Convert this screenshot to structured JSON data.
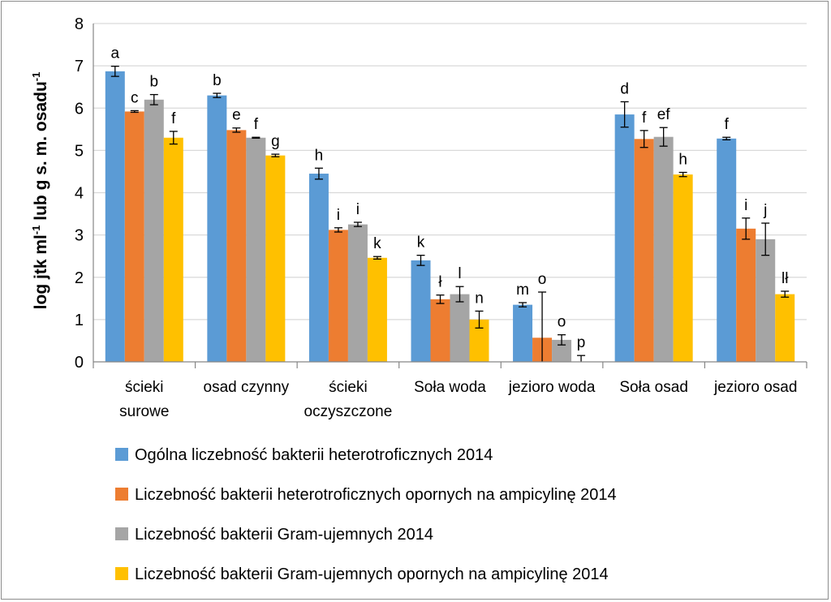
{
  "chart_data": {
    "type": "bar",
    "ylabel": "log jtk ml-1 lub g s. m. osadu-1",
    "ylabel_parts": [
      "log jtk ml",
      "-1",
      " lub g s. m. osadu",
      "-1"
    ],
    "ylim": [
      0,
      8
    ],
    "yticks": [
      0,
      1,
      2,
      3,
      4,
      5,
      6,
      7,
      8
    ],
    "grid": true,
    "legend_position": "bottom",
    "categories": [
      "ścieki surowe",
      "osad czynny",
      "ścieki oczyszczone",
      "Soła woda",
      "jezioro woda",
      "Soła osad",
      "jezioro osad"
    ],
    "category_lines": [
      [
        "ścieki",
        "surowe"
      ],
      [
        "osad czynny"
      ],
      [
        "ścieki",
        "oczyszczone"
      ],
      [
        "Soła woda"
      ],
      [
        "jezioro woda"
      ],
      [
        "Soła osad"
      ],
      [
        "jezioro osad"
      ]
    ],
    "series": [
      {
        "name": "Ogólna liczebność bakterii heterotroficznych 2014",
        "color": "#5B9BD5",
        "values": [
          6.87,
          6.3,
          4.45,
          2.4,
          1.35,
          5.85,
          5.28
        ],
        "errors": [
          0.12,
          0.05,
          0.13,
          0.12,
          0.05,
          0.3,
          0.03
        ],
        "labels": [
          "a",
          "b",
          "h",
          "k",
          "m",
          "d",
          "f"
        ]
      },
      {
        "name": "Liczebność bakterii heterotroficznych opornych na ampicylinę 2014",
        "color": "#ED7D31",
        "values": [
          5.92,
          5.48,
          3.12,
          1.48,
          0.57,
          5.27,
          3.15
        ],
        "errors": [
          0.02,
          0.05,
          0.05,
          0.1,
          1.08,
          0.2,
          0.25
        ],
        "labels": [
          "c",
          "e",
          "i",
          "ł",
          "o",
          "f",
          "i"
        ]
      },
      {
        "name": "Liczebność bakterii Gram-ujemnych 2014",
        "color": "#A5A5A5",
        "values": [
          6.2,
          5.3,
          3.25,
          1.6,
          0.52,
          5.32,
          2.9
        ],
        "errors": [
          0.12,
          0.01,
          0.05,
          0.18,
          0.12,
          0.22,
          0.38
        ],
        "labels": [
          "b",
          "f",
          "i",
          "l",
          "o",
          "ef",
          "j"
        ]
      },
      {
        "name": "Liczebność bakterii Gram-ujemnych opornych na ampicylinę 2014",
        "color": "#FFC000",
        "values": [
          5.3,
          4.88,
          2.46,
          1.0,
          0.0,
          4.43,
          1.6
        ],
        "errors": [
          0.15,
          0.03,
          0.03,
          0.2,
          0.15,
          0.05,
          0.07
        ],
        "labels": [
          "f",
          "g",
          "k",
          "n",
          "p",
          "h",
          "lł"
        ]
      }
    ]
  }
}
